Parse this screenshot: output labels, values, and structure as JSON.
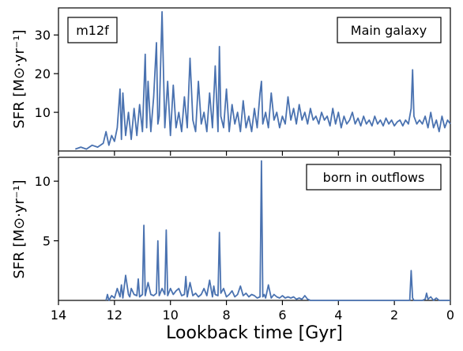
{
  "colors": {
    "line": "#4a72b0",
    "axis": "#000000",
    "background": "#ffffff"
  },
  "chart_data": [
    {
      "type": "line",
      "panel": "top",
      "xlabel": "",
      "ylabel": "SFR [M⊙·yr⁻¹]",
      "xlim": [
        14,
        0
      ],
      "ylim": [
        0,
        37
      ],
      "xticks": [
        14,
        12,
        10,
        8,
        6,
        4,
        2,
        0
      ],
      "xtick_labels": [],
      "yticks": [
        10,
        20,
        30
      ],
      "ytick_labels": [
        "10",
        "20",
        "30"
      ],
      "annotations": {
        "left": "m12f",
        "right": "Main galaxy"
      },
      "grid": false,
      "series": [
        {
          "x": [
            13.4,
            13.2,
            13.0,
            12.8,
            12.6,
            12.4,
            12.3,
            12.2,
            12.1,
            12.0,
            11.9,
            11.8,
            11.75,
            11.7,
            11.6,
            11.5,
            11.4,
            11.3,
            11.2,
            11.1,
            11.0,
            10.9,
            10.85,
            10.8,
            10.7,
            10.6,
            10.5,
            10.45,
            10.4,
            10.3,
            10.2,
            10.15,
            10.1,
            10.0,
            9.9,
            9.8,
            9.7,
            9.6,
            9.5,
            9.4,
            9.3,
            9.2,
            9.1,
            9.0,
            8.9,
            8.8,
            8.7,
            8.6,
            8.5,
            8.4,
            8.3,
            8.25,
            8.2,
            8.1,
            8.0,
            7.9,
            7.8,
            7.7,
            7.6,
            7.5,
            7.4,
            7.3,
            7.2,
            7.1,
            7.0,
            6.9,
            6.8,
            6.75,
            6.7,
            6.6,
            6.5,
            6.4,
            6.3,
            6.2,
            6.1,
            6.0,
            5.9,
            5.8,
            5.7,
            5.6,
            5.5,
            5.4,
            5.3,
            5.2,
            5.1,
            5.0,
            4.9,
            4.8,
            4.7,
            4.6,
            4.5,
            4.4,
            4.3,
            4.2,
            4.1,
            4.0,
            3.9,
            3.8,
            3.7,
            3.6,
            3.5,
            3.4,
            3.3,
            3.2,
            3.1,
            3.0,
            2.9,
            2.8,
            2.7,
            2.6,
            2.5,
            2.4,
            2.3,
            2.2,
            2.1,
            2.0,
            1.9,
            1.8,
            1.7,
            1.6,
            1.5,
            1.4,
            1.35,
            1.3,
            1.2,
            1.1,
            1.0,
            0.9,
            0.8,
            0.7,
            0.6,
            0.5,
            0.4,
            0.3,
            0.2,
            0.1,
            0.0
          ],
          "y": [
            0.5,
            1.0,
            0.5,
            1.5,
            1.0,
            2.0,
            5.0,
            1.5,
            4.0,
            2.5,
            6.0,
            16.0,
            3.0,
            15.0,
            4.0,
            10.0,
            3.0,
            11.0,
            4.0,
            12.0,
            5.0,
            25.0,
            6.0,
            18.0,
            5.0,
            14.0,
            28.0,
            7.0,
            9.0,
            36.0,
            6.0,
            12.0,
            18.0,
            4.0,
            17.0,
            6.0,
            10.0,
            5.0,
            14.0,
            6.0,
            24.0,
            8.0,
            5.0,
            18.0,
            7.0,
            10.0,
            5.0,
            15.0,
            6.0,
            22.0,
            5.0,
            27.0,
            9.0,
            6.0,
            16.0,
            5.0,
            12.0,
            7.0,
            10.0,
            5.0,
            13.0,
            6.0,
            9.0,
            5.0,
            11.0,
            6.0,
            15.0,
            18.0,
            7.0,
            10.0,
            6.0,
            15.0,
            8.0,
            10.0,
            6.0,
            9.0,
            7.0,
            14.0,
            8.0,
            11.0,
            7.0,
            12.0,
            8.0,
            10.0,
            7.0,
            11.0,
            8.0,
            9.0,
            7.0,
            10.0,
            8.0,
            9.0,
            6.5,
            11.0,
            7.0,
            10.0,
            6.0,
            9.0,
            7.0,
            8.0,
            10.0,
            7.0,
            8.5,
            6.5,
            9.0,
            7.0,
            8.0,
            6.5,
            9.0,
            7.0,
            8.0,
            6.5,
            8.5,
            7.0,
            8.0,
            6.5,
            7.5,
            8.0,
            6.5,
            8.0,
            7.0,
            11.0,
            21.0,
            9.0,
            7.0,
            8.0,
            7.0,
            9.0,
            6.0,
            10.0,
            6.0,
            8.0,
            5.0,
            9.0,
            6.0,
            8.0,
            7.0
          ]
        }
      ]
    },
    {
      "type": "line",
      "panel": "bottom",
      "xlabel": "Lookback time [Gyr]",
      "ylabel": "SFR [M⊙·yr⁻¹]",
      "xlim": [
        14,
        0
      ],
      "ylim": [
        0,
        12
      ],
      "xticks": [
        14,
        12,
        10,
        8,
        6,
        4,
        2,
        0
      ],
      "xtick_labels": [
        "14",
        "12",
        "10",
        "8",
        "6",
        "4",
        "2",
        "0"
      ],
      "yticks": [
        5,
        10
      ],
      "ytick_labels": [
        "5",
        "10"
      ],
      "annotations": {
        "right": "born in outflows"
      },
      "grid": false,
      "series": [
        {
          "x": [
            12.3,
            12.25,
            12.2,
            12.1,
            12.0,
            11.9,
            11.8,
            11.75,
            11.7,
            11.6,
            11.5,
            11.45,
            11.4,
            11.3,
            11.2,
            11.15,
            11.1,
            11.0,
            10.95,
            10.9,
            10.8,
            10.7,
            10.6,
            10.5,
            10.45,
            10.4,
            10.3,
            10.2,
            10.15,
            10.1,
            10.0,
            9.9,
            9.8,
            9.7,
            9.6,
            9.5,
            9.45,
            9.4,
            9.3,
            9.2,
            9.1,
            9.0,
            8.9,
            8.8,
            8.7,
            8.6,
            8.5,
            8.45,
            8.4,
            8.3,
            8.25,
            8.2,
            8.1,
            8.0,
            7.9,
            7.8,
            7.7,
            7.6,
            7.5,
            7.4,
            7.3,
            7.2,
            7.1,
            7.0,
            6.9,
            6.8,
            6.75,
            6.7,
            6.65,
            6.6,
            6.5,
            6.4,
            6.3,
            6.2,
            6.1,
            6.0,
            5.9,
            5.8,
            5.7,
            5.6,
            5.5,
            5.4,
            5.3,
            5.2,
            5.1,
            5.0,
            4.0,
            3.0,
            2.0,
            1.45,
            1.4,
            1.35,
            1.3,
            1.0,
            0.9,
            0.85,
            0.8,
            0.7,
            0.6,
            0.5,
            0.4,
            0.0
          ],
          "y": [
            0,
            0.5,
            0,
            0.4,
            0.2,
            1.0,
            0.3,
            1.3,
            0.2,
            2.1,
            0.5,
            0.3,
            1.0,
            0.5,
            0.4,
            1.8,
            0.3,
            0.5,
            6.3,
            0.4,
            1.5,
            0.5,
            0.4,
            0.6,
            5.0,
            0.4,
            1.0,
            0.5,
            5.9,
            0.4,
            1.0,
            0.5,
            0.8,
            1.0,
            0.4,
            0.5,
            2.0,
            0.3,
            1.5,
            0.4,
            0.6,
            0.3,
            0.5,
            1.0,
            0.4,
            1.7,
            0.3,
            1.2,
            0.5,
            0.4,
            5.7,
            0.6,
            1.0,
            0.3,
            0.5,
            0.8,
            0.3,
            0.5,
            1.2,
            0.4,
            0.6,
            0.3,
            0.5,
            0.4,
            0.2,
            0.3,
            11.7,
            0.3,
            0.5,
            0.2,
            1.3,
            0.2,
            0.5,
            0.3,
            0.2,
            0.4,
            0.2,
            0.3,
            0.2,
            0.3,
            0.1,
            0.2,
            0.1,
            0.4,
            0.1,
            0,
            0,
            0,
            0,
            0,
            2.5,
            0.2,
            0,
            0,
            0.1,
            0.6,
            0.1,
            0.3,
            0,
            0.2,
            0,
            0
          ]
        }
      ]
    }
  ]
}
